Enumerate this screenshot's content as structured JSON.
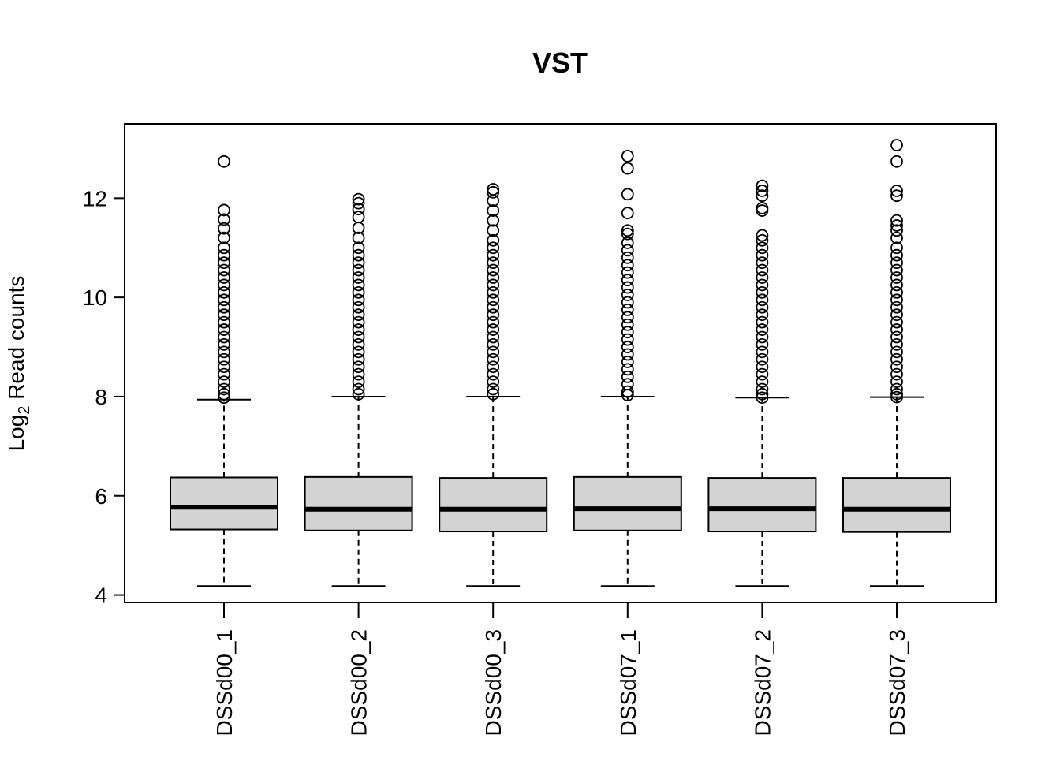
{
  "chart_data": {
    "type": "boxplot",
    "title": "VST",
    "ylabel": {
      "main": "Log",
      "sub": "2",
      "rest": " Read counts"
    },
    "ylim": [
      3.85,
      13.5
    ],
    "yticks": [
      4,
      6,
      8,
      10,
      12
    ],
    "ytick_labels": [
      "4",
      "6",
      "8",
      "10",
      "12"
    ],
    "categories": [
      "DSSd00_1",
      "DSSd00_2",
      "DSSd00_3",
      "DSSd07_1",
      "DSSd07_2",
      "DSSd07_3"
    ],
    "box_fill": "#d3d3d3",
    "boxes": [
      {
        "whisker_low": 4.18,
        "q1": 5.32,
        "median": 5.77,
        "q3": 6.37,
        "whisker_high": 7.94,
        "outliers": [
          12.74,
          11.76,
          11.57,
          11.39,
          11.2,
          11.0,
          10.85,
          10.7,
          10.55,
          10.4,
          10.25,
          10.1,
          9.95,
          9.8,
          9.65,
          9.5,
          9.35,
          9.2,
          9.05,
          8.9,
          8.75,
          8.6,
          8.45,
          8.3,
          8.15,
          8.05,
          7.98
        ]
      },
      {
        "whisker_low": 4.18,
        "q1": 5.3,
        "median": 5.73,
        "q3": 6.38,
        "whisker_high": 8.0,
        "outliers": [
          11.98,
          11.9,
          11.78,
          11.62,
          11.4,
          11.2,
          11.0,
          10.85,
          10.7,
          10.55,
          10.4,
          10.25,
          10.1,
          9.95,
          9.8,
          9.65,
          9.5,
          9.35,
          9.2,
          9.05,
          8.9,
          8.75,
          8.6,
          8.45,
          8.3,
          8.15,
          8.05
        ]
      },
      {
        "whisker_low": 4.18,
        "q1": 5.28,
        "median": 5.73,
        "q3": 6.36,
        "whisker_high": 8.0,
        "outliers": [
          12.18,
          12.12,
          11.95,
          11.75,
          11.55,
          11.35,
          11.15,
          11.0,
          10.85,
          10.7,
          10.55,
          10.4,
          10.25,
          10.1,
          9.95,
          9.8,
          9.65,
          9.5,
          9.35,
          9.2,
          9.05,
          8.9,
          8.75,
          8.6,
          8.45,
          8.3,
          8.15,
          8.05
        ]
      },
      {
        "whisker_low": 4.18,
        "q1": 5.3,
        "median": 5.74,
        "q3": 6.38,
        "whisker_high": 8.0,
        "outliers": [
          12.85,
          12.6,
          12.08,
          11.7,
          11.35,
          11.28,
          11.1,
          10.95,
          10.8,
          10.65,
          10.5,
          10.35,
          10.2,
          10.05,
          9.9,
          9.75,
          9.6,
          9.45,
          9.3,
          9.15,
          9.0,
          8.85,
          8.7,
          8.55,
          8.4,
          8.25,
          8.1,
          8.03
        ]
      },
      {
        "whisker_low": 4.18,
        "q1": 5.28,
        "median": 5.74,
        "q3": 6.36,
        "whisker_high": 7.98,
        "outliers": [
          12.25,
          12.15,
          12.05,
          11.8,
          11.75,
          11.25,
          11.15,
          11.0,
          10.85,
          10.7,
          10.55,
          10.4,
          10.25,
          10.1,
          9.95,
          9.8,
          9.65,
          9.5,
          9.35,
          9.2,
          9.05,
          8.9,
          8.75,
          8.6,
          8.45,
          8.3,
          8.15,
          8.05,
          7.98
        ]
      },
      {
        "whisker_low": 4.18,
        "q1": 5.27,
        "median": 5.73,
        "q3": 6.36,
        "whisker_high": 7.99,
        "outliers": [
          13.07,
          12.74,
          12.15,
          12.05,
          11.55,
          11.45,
          11.35,
          11.2,
          11.0,
          10.85,
          10.7,
          10.55,
          10.4,
          10.25,
          10.1,
          9.95,
          9.8,
          9.65,
          9.5,
          9.35,
          9.2,
          9.05,
          8.9,
          8.75,
          8.6,
          8.45,
          8.3,
          8.15,
          8.05,
          7.99
        ]
      }
    ]
  }
}
